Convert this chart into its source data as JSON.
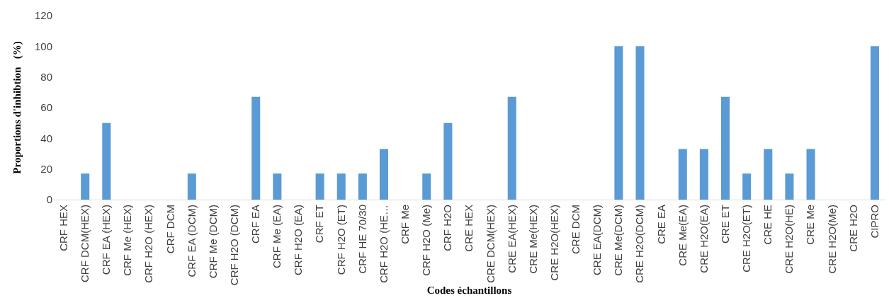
{
  "chart_data": {
    "type": "bar",
    "xlabel": "Codes échantillons",
    "ylabel": "Proportions d'inhibtion   (%)",
    "categories": [
      "CRF HEX",
      "CRF DCM(HEX)",
      "CRF EA (HEX)",
      "CRF Me (HEX)",
      "CRF H2O (HEX)",
      "CRF DCM",
      "CRF EA (DCM)",
      "CRF Me (DCM)",
      "CRF H2O (DCM)",
      "CRF EA",
      "CRF Me (EA)",
      "CRF H2O (EA)",
      "CRF ET",
      "CRF H2O (ET)",
      "CRF HE 70/30",
      "CRF H2O (HE…",
      "CRF Me",
      "CRF H2O (Me)",
      "CRF H2O",
      "CRE HEX",
      "CRE DCM(HEX)",
      "CRE EA(HEX)",
      "CRE Me(HEX)",
      "CRE H2O(HEX)",
      "CRE DCM",
      "CRE EA(DCM)",
      "CRE Me(DCM)",
      "CRE H2O(DCM)",
      "CRE EA",
      "CRE Me(EA)",
      "CRE H2O(EA)",
      "CRE ET",
      "CRE H2O(ET)",
      "CRE HE",
      "CRE H2O(HE)",
      "CRE Me",
      "CRE H2O(Me)",
      "CRE H2O",
      "CIPRO"
    ],
    "values": [
      0,
      17,
      50,
      0,
      0,
      0,
      17,
      0,
      0,
      67,
      17,
      0,
      17,
      17,
      17,
      33,
      0,
      17,
      50,
      0,
      0,
      67,
      0,
      0,
      0,
      0,
      100,
      100,
      0,
      33,
      33,
      67,
      17,
      33,
      17,
      33,
      0,
      0,
      100
    ],
    "color": "#5b9bd5",
    "ylim": [
      0,
      120
    ],
    "yticks": [
      0,
      20,
      40,
      60,
      80,
      100,
      120
    ],
    "grid": false
  }
}
